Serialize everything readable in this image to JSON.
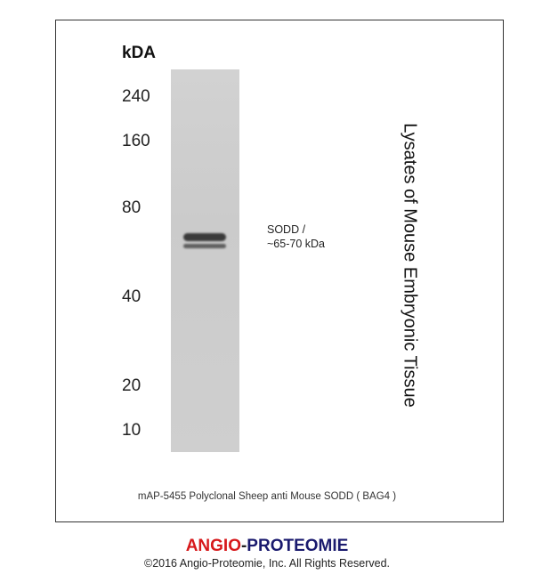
{
  "blot": {
    "unit_label": "kDA",
    "markers": [
      "240",
      "160",
      "80",
      "40",
      "20",
      "10"
    ],
    "band_annotation": {
      "line1": "SODD  /",
      "line2": "~65-70 kDa"
    },
    "sample_label": "Lysates of Mouse Embryonic Tissue",
    "caption": "mAP-5455 Polyclonal Sheep anti Mouse SODD ( BAG4 )"
  },
  "footer": {
    "brand_part1": "ANGIO",
    "brand_sep": "-",
    "brand_part2": "PROTEOMIE",
    "brand_color1": "#d7191c",
    "brand_color2": "#1a1a6e",
    "copyright": "©2016 Angio-Proteomie, Inc.  All Rights Reserved."
  }
}
